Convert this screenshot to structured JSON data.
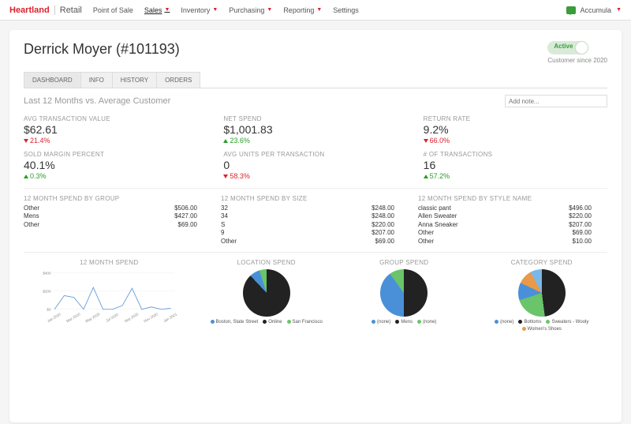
{
  "brand": {
    "left": "Heartland",
    "right": "Retail"
  },
  "nav": {
    "items": [
      "Point of Sale",
      "Sales",
      "Inventory",
      "Purchasing",
      "Reporting",
      "Settings"
    ],
    "active_index": 1
  },
  "user": {
    "name": "Accumula"
  },
  "customer": {
    "title": "Derrick Moyer (#101193)",
    "status": "Active",
    "since": "Customer since 2020"
  },
  "tabs": {
    "items": [
      "DASHBOARD",
      "INFO",
      "HISTORY",
      "ORDERS"
    ],
    "active_index": 0
  },
  "subtitle": "Last 12 Months vs. Average Customer",
  "note_placeholder": "Add note...",
  "metrics": [
    {
      "label": "AVG TRANSACTION VALUE",
      "value": "$62.61",
      "delta": "21.4%",
      "dir": "down"
    },
    {
      "label": "NET SPEND",
      "value": "$1,001.83",
      "delta": "23.6%",
      "dir": "up"
    },
    {
      "label": "RETURN RATE",
      "value": "9.2%",
      "delta": "66.0%",
      "dir": "down"
    },
    {
      "label": "SOLD MARGIN PERCENT",
      "value": "40.1%",
      "delta": "0.3%",
      "dir": "up"
    },
    {
      "label": "AVG UNITS PER TRANSACTION",
      "value": "0",
      "delta": "58.3%",
      "dir": "down"
    },
    {
      "label": "# OF TRANSACTIONS",
      "value": "16",
      "delta": "57.2%",
      "dir": "up"
    }
  ],
  "spend_tables": [
    {
      "title": "12 MONTH SPEND BY GROUP",
      "rows": [
        [
          "Other",
          "$506.00"
        ],
        [
          "Mens",
          "$427.00"
        ],
        [
          "Other",
          "$69.00"
        ]
      ]
    },
    {
      "title": "12 MONTH SPEND BY SIZE",
      "rows": [
        [
          "32",
          "$248.00"
        ],
        [
          "34",
          "$248.00"
        ],
        [
          "S",
          "$220.00"
        ],
        [
          "9",
          "$207.00"
        ],
        [
          "Other",
          "$69.00"
        ]
      ]
    },
    {
      "title": "12 MONTH SPEND BY STYLE NAME",
      "rows": [
        [
          "classic pant",
          "$496.00"
        ],
        [
          "Allen Sweater",
          "$220.00"
        ],
        [
          "Anna Sneaker",
          "$207.00"
        ],
        [
          "Other",
          "$69.00"
        ],
        [
          "Other",
          "$10.00"
        ]
      ]
    }
  ],
  "colors": {
    "blue": "#4a90d9",
    "black": "#222",
    "green": "#6ac46a",
    "lightblue": "#7ab8e8",
    "orange": "#e89a4a"
  },
  "line_chart": {
    "title": "12 MONTH SPEND",
    "y_ticks": [
      "$400",
      "$200",
      "$0"
    ],
    "x_labels": [
      "Jan 2020",
      "Mar 2020",
      "May 2020",
      "Jul 2020",
      "Sep 2020",
      "Nov 2020",
      "Jan 2021"
    ],
    "points": [
      0,
      150,
      130,
      0,
      240,
      0,
      0,
      40,
      230,
      0,
      25,
      0,
      10
    ],
    "ymax": 400,
    "line_color": "#6a9edb"
  },
  "pies": [
    {
      "title": "LOCATION SPEND",
      "slices": [
        {
          "color": "#222",
          "pct": 88
        },
        {
          "color": "#4a90d9",
          "pct": 7
        },
        {
          "color": "#6ac46a",
          "pct": 5
        }
      ],
      "legend": [
        {
          "c": "#4a90d9",
          "t": "Boston, State Street"
        },
        {
          "c": "#222",
          "t": "Online"
        },
        {
          "c": "#6ac46a",
          "t": "San Francisco"
        }
      ]
    },
    {
      "title": "GROUP SPEND",
      "slices": [
        {
          "color": "#222",
          "pct": 50
        },
        {
          "color": "#4a90d9",
          "pct": 40
        },
        {
          "color": "#6ac46a",
          "pct": 10
        }
      ],
      "legend": [
        {
          "c": "#4a90d9",
          "t": "(none)"
        },
        {
          "c": "#222",
          "t": "Mens"
        },
        {
          "c": "#6ac46a",
          "t": "(none)"
        }
      ]
    },
    {
      "title": "CATEGORY SPEND",
      "slices": [
        {
          "color": "#222",
          "pct": 48
        },
        {
          "color": "#6ac46a",
          "pct": 22
        },
        {
          "color": "#4a90d9",
          "pct": 12
        },
        {
          "color": "#e89a4a",
          "pct": 10
        },
        {
          "color": "#7ab8e8",
          "pct": 8
        }
      ],
      "legend": [
        {
          "c": "#4a90d9",
          "t": "(none)"
        },
        {
          "c": "#222",
          "t": "Bottoms"
        },
        {
          "c": "#6ac46a",
          "t": "Sweaters - Wooly"
        },
        {
          "c": "#e89a4a",
          "t": "Women's Shoes"
        }
      ]
    }
  ]
}
